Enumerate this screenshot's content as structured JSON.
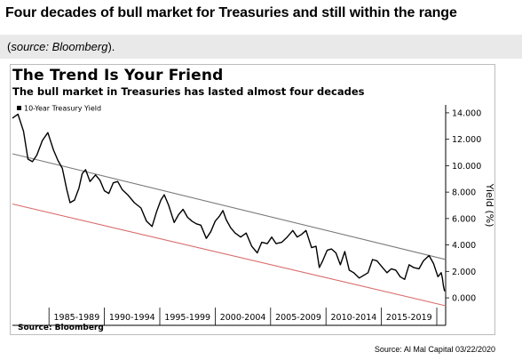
{
  "page": {
    "headline": "Four decades of bull market for Treasuries and still within the range",
    "source_open": "(",
    "source_italic": "source: Bloomberg",
    "source_close": ").",
    "footer_credit": "Source: Al Mal Capital 03/22/2020"
  },
  "colors": {
    "series": "#000000",
    "upper_channel": "#7a7a7a",
    "lower_channel": "#d96b6b",
    "source_band": "#e9e9e9"
  },
  "chart_data": {
    "type": "line",
    "title": "The Trend Is Your Friend",
    "subtitle": "The bull market in Treasuries has lasted almost four decades",
    "source": "Source: Bloomberg",
    "ylabel": "Yield (%)",
    "ylim": [
      -0.6,
      14.6
    ],
    "yticks": [
      14,
      12,
      10,
      8,
      6,
      4,
      2,
      0
    ],
    "ytick_labels": [
      "14.000",
      "12.000",
      "10.000",
      "8.000",
      "6.000",
      "4.000",
      "2.000",
      "0.000"
    ],
    "xlim": [
      1981.2,
      2020.3
    ],
    "x_categories": [
      "1985-1989",
      "1990-1994",
      "1995-1999",
      "2000-2004",
      "2005-2009",
      "2010-2014",
      "2015-2019"
    ],
    "x_category_centers": [
      1987.0,
      1992.0,
      1997.0,
      2002.0,
      2007.0,
      2012.0,
      2017.0
    ],
    "x_dividers": [
      1984.5,
      1989.5,
      1994.5,
      1999.5,
      2004.5,
      2009.5,
      2014.5,
      2019.5
    ],
    "legend": "top-left",
    "grid": false,
    "series": [
      {
        "name": "10-Year Treasury Yield",
        "x": [
          1981.2,
          1981.7,
          1982.2,
          1982.6,
          1983.0,
          1983.4,
          1983.9,
          1984.4,
          1984.9,
          1985.3,
          1985.7,
          1986.1,
          1986.4,
          1986.8,
          1987.2,
          1987.5,
          1987.8,
          1988.2,
          1988.7,
          1989.1,
          1989.5,
          1989.9,
          1990.3,
          1990.7,
          1991.1,
          1991.6,
          1992.2,
          1992.8,
          1993.3,
          1993.8,
          1994.2,
          1994.6,
          1994.9,
          1995.3,
          1995.8,
          1996.2,
          1996.6,
          1997.0,
          1997.4,
          1997.8,
          1998.2,
          1998.7,
          1999.1,
          1999.5,
          1999.9,
          2000.2,
          2000.5,
          2000.9,
          2001.3,
          2001.8,
          2002.3,
          2002.8,
          2003.3,
          2003.7,
          2004.2,
          2004.6,
          2005.0,
          2005.5,
          2006.0,
          2006.5,
          2006.9,
          2007.3,
          2007.7,
          2008.2,
          2008.6,
          2008.9,
          2009.2,
          2009.6,
          2010.0,
          2010.4,
          2010.8,
          2011.2,
          2011.6,
          2012.0,
          2012.5,
          2012.9,
          2013.3,
          2013.7,
          2014.1,
          2014.5,
          2015.0,
          2015.4,
          2015.8,
          2016.2,
          2016.6,
          2017.0,
          2017.4,
          2017.9,
          2018.3,
          2018.8,
          2019.2,
          2019.6,
          2019.9,
          2020.0,
          2020.1,
          2020.2
        ],
        "y": [
          13.6,
          13.9,
          12.6,
          10.5,
          10.3,
          10.8,
          11.9,
          12.5,
          11.2,
          10.4,
          9.8,
          8.2,
          7.2,
          7.4,
          8.3,
          9.4,
          9.7,
          8.8,
          9.3,
          8.9,
          8.1,
          7.9,
          8.7,
          8.8,
          8.2,
          7.8,
          7.2,
          6.8,
          5.8,
          5.4,
          6.5,
          7.4,
          7.8,
          7.0,
          5.7,
          6.3,
          6.7,
          6.1,
          5.8,
          5.6,
          5.5,
          4.5,
          5.0,
          5.8,
          6.2,
          6.6,
          5.9,
          5.3,
          4.9,
          4.6,
          4.9,
          3.9,
          3.4,
          4.2,
          4.1,
          4.6,
          4.1,
          4.2,
          4.6,
          5.1,
          4.6,
          4.8,
          5.1,
          3.8,
          3.9,
          2.3,
          2.8,
          3.6,
          3.7,
          3.4,
          2.5,
          3.5,
          2.1,
          1.9,
          1.5,
          1.7,
          1.9,
          2.9,
          2.8,
          2.4,
          1.9,
          2.2,
          2.1,
          1.6,
          1.4,
          2.5,
          2.3,
          2.2,
          2.8,
          3.2,
          2.6,
          1.6,
          1.9,
          1.5,
          0.9,
          0.5
        ]
      }
    ],
    "channel_upper": {
      "x": [
        1981.2,
        2020.3
      ],
      "y": [
        10.9,
        2.9
      ]
    },
    "channel_lower": {
      "x": [
        1981.2,
        2020.3
      ],
      "y": [
        7.1,
        -0.6
      ]
    }
  }
}
